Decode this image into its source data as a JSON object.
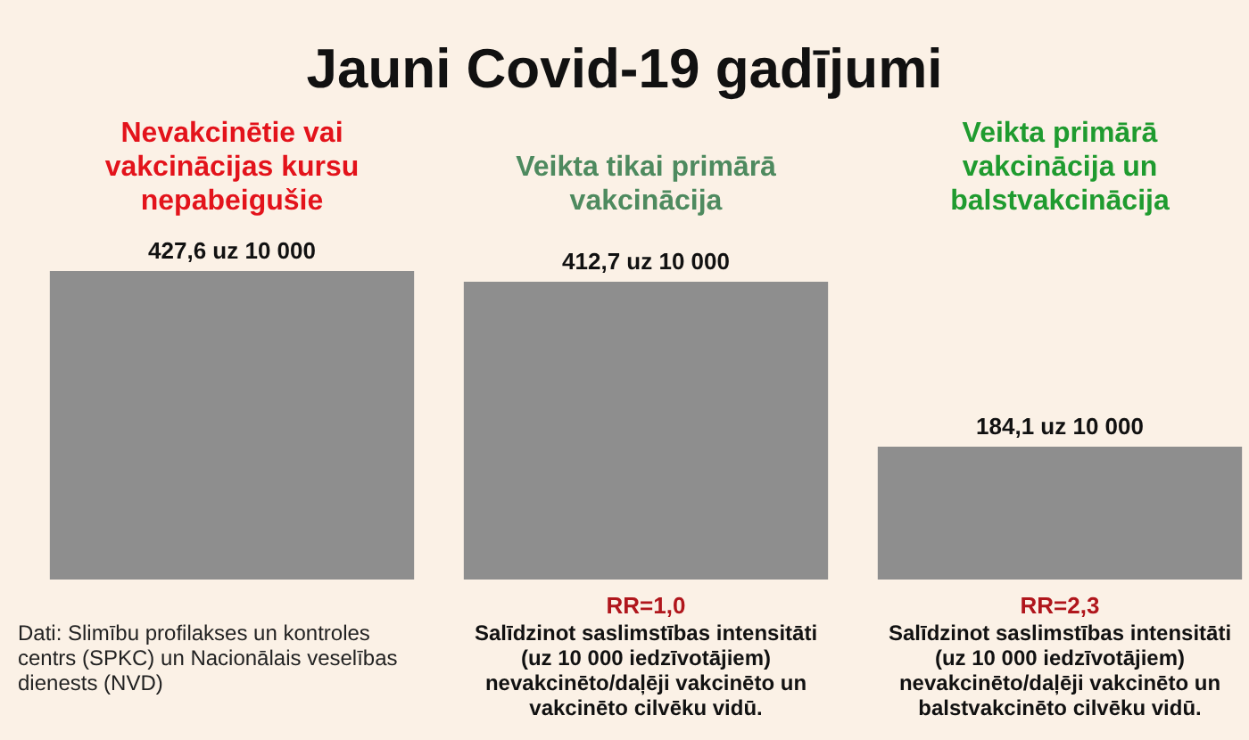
{
  "chart_data": {
    "type": "bar",
    "title": "Jauni Covid-19 gadījumi",
    "categories": [
      "Nevakcinētie vai vakcinācijas kursu nepabeigušie",
      "Veikta tikai primārā vakcinācija",
      "Veikta primārā vakcinācija un balstvakcinācija"
    ],
    "values": [
      427.6,
      412.7,
      184.1
    ],
    "color": "#8e8e8e",
    "value_labels": [
      "427,6 uz 10 000",
      "412,7 uz 10 000",
      "184,1 uz 10 000"
    ],
    "tick_labels": "x",
    "annotations": [
      "Dati: Slimību profilakses un kontroles centrs (SPKC) un Nacionālais veselības dienests (NVD)",
      "RR=1,0",
      "Salīdzinot saslimstības intensitāti (uz 10 000 iedzīvotājiem) nevakcinēto/daļēji vakcinēto un vakcinēto cilvēku vidū.",
      "RR=2,3",
      "Salīdzinot saslimstības intensitāti (uz 10 000 iedzīvotājiem) nevakcinēto/daļēji vakcinēto un balstvakcinēto cilvēku vidū."
    ]
  }
}
